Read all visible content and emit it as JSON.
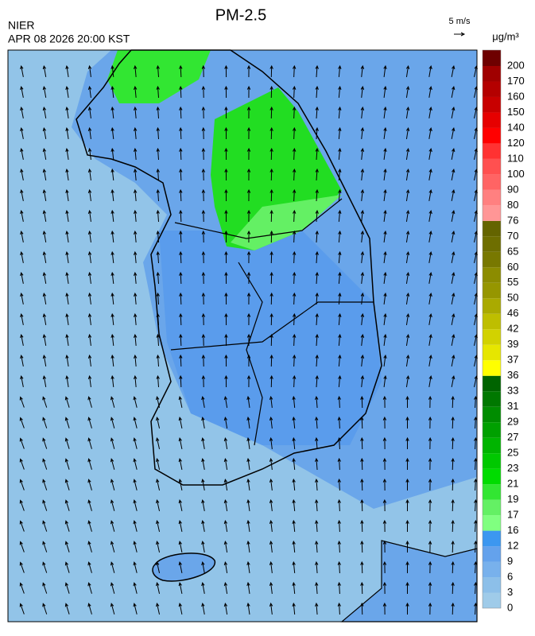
{
  "header": {
    "title": "PM-2.5",
    "source": "NIER",
    "datetime": "APR 08 2026 20:00 KST",
    "wind_scale": "5 m/s"
  },
  "colorbar": {
    "unit": "μg/m³",
    "ticks": [
      0,
      3,
      6,
      9,
      12,
      16,
      17,
      19,
      21,
      23,
      25,
      27,
      29,
      31,
      33,
      36,
      37,
      39,
      42,
      46,
      50,
      55,
      60,
      65,
      70,
      76,
      80,
      90,
      100,
      110,
      120,
      140,
      150,
      160,
      170,
      200
    ],
    "colors": [
      "#9fcbe9",
      "#8cbfe9",
      "#78b1ec",
      "#64a2ec",
      "#3c97f0",
      "#80ff80",
      "#64f064",
      "#32e632",
      "#00dc00",
      "#00c800",
      "#00b400",
      "#00a000",
      "#008c00",
      "#007800",
      "#006400",
      "#ffff00",
      "#e6e600",
      "#d2d200",
      "#bebe00",
      "#aaaa00",
      "#969600",
      "#8c8c00",
      "#787800",
      "#6e6e00",
      "#646400",
      "#ff9696",
      "#ff8080",
      "#ff6464",
      "#ff5050",
      "#ff3232",
      "#ff0000",
      "#e60000",
      "#c80000",
      "#b40000",
      "#a00000",
      "#6e0000"
    ]
  }
}
